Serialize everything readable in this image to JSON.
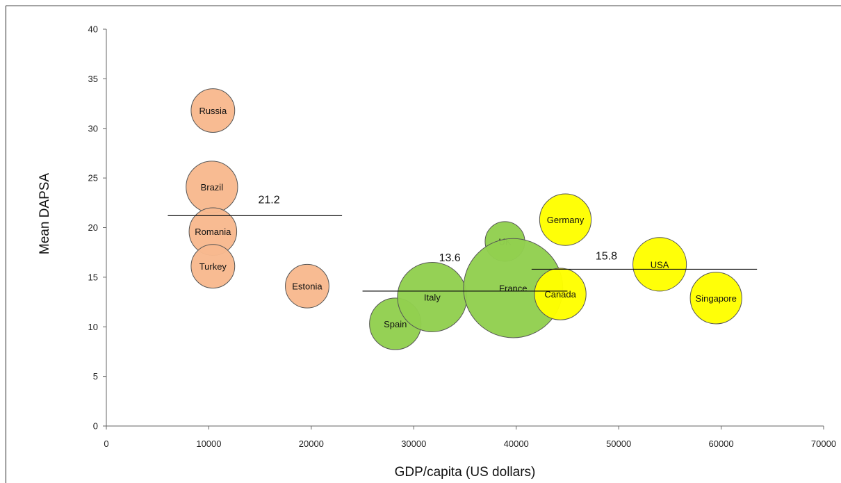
{
  "chart_data": {
    "type": "scatter",
    "subtype": "bubble",
    "xlabel": "GDP/capita (US dollars)",
    "ylabel": "Mean DAPSA",
    "xlim": [
      0,
      70000
    ],
    "ylim": [
      0,
      40
    ],
    "xticks": [
      0,
      10000,
      20000,
      30000,
      40000,
      50000,
      60000,
      70000
    ],
    "yticks": [
      0,
      5,
      10,
      15,
      20,
      25,
      30,
      35,
      40
    ],
    "grid": false,
    "colors": {
      "orange": "#f8b98e",
      "green": "#92d050",
      "yellow": "#ffff00"
    },
    "points": [
      {
        "label": "Russia",
        "x": 10400,
        "y": 31.8,
        "r": 2.2,
        "group": "orange"
      },
      {
        "label": "Brazil",
        "x": 10300,
        "y": 24.1,
        "r": 2.6,
        "group": "orange"
      },
      {
        "label": "Romania",
        "x": 10400,
        "y": 19.6,
        "r": 2.4,
        "group": "orange"
      },
      {
        "label": "Turkey",
        "x": 10400,
        "y": 16.1,
        "r": 2.2,
        "group": "orange"
      },
      {
        "label": "Estonia",
        "x": 19600,
        "y": 14.1,
        "r": 2.2,
        "group": "orange"
      },
      {
        "label": "UK",
        "x": 38900,
        "y": 18.6,
        "r": 2.0,
        "group": "green"
      },
      {
        "label": "Spain",
        "x": 28200,
        "y": 10.3,
        "r": 2.6,
        "group": "green"
      },
      {
        "label": "Italy",
        "x": 31800,
        "y": 13.0,
        "r": 3.5,
        "group": "green"
      },
      {
        "label": "France",
        "x": 39700,
        "y": 13.9,
        "r": 5.0,
        "group": "green"
      },
      {
        "label": "Germany",
        "x": 44800,
        "y": 20.8,
        "r": 2.6,
        "group": "yellow"
      },
      {
        "label": "Canada",
        "x": 44300,
        "y": 13.3,
        "r": 2.6,
        "group": "yellow"
      },
      {
        "label": "USA",
        "x": 54000,
        "y": 16.3,
        "r": 2.7,
        "group": "yellow"
      },
      {
        "label": "Singapore",
        "x": 59500,
        "y": 12.9,
        "r": 2.6,
        "group": "yellow"
      }
    ],
    "mean_lines": [
      {
        "label": "21.2",
        "y": 21.2,
        "x_start": 6000,
        "x_end": 23000
      },
      {
        "label": "13.6",
        "y": 13.6,
        "x_start": 25000,
        "x_end": 45000
      },
      {
        "label": "15.8",
        "y": 15.8,
        "x_start": 41500,
        "x_end": 63500
      }
    ]
  }
}
